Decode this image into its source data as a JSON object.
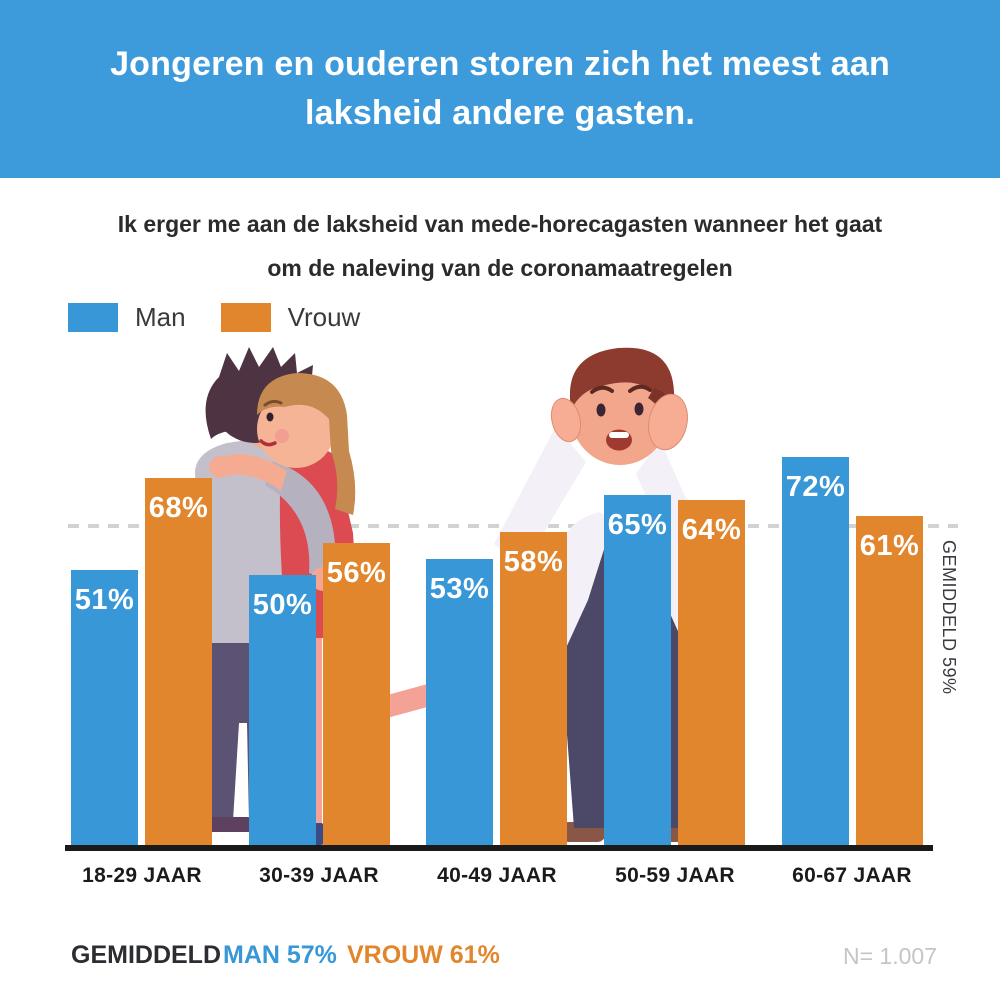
{
  "colors": {
    "header_bg": "#3e9bdb",
    "man_blue": "#3897d6",
    "vrouw_orange": "#e1862c",
    "text_dark": "#2b2b2e",
    "axis_black": "#1a1a1a",
    "dash_gray": "#d2d2d2",
    "muted_gray": "#c5c5c9",
    "bar_value_text": "#ffffff"
  },
  "header": {
    "title": "Jongeren en ouderen storen zich het meest aan laksheid andere gasten."
  },
  "subtitle": {
    "line1": "Ik erger me aan de laksheid van mede-horecagasten wanneer het gaat",
    "line2": "om de naleving van de coronamaatregelen"
  },
  "chart_data": {
    "type": "bar",
    "categories": [
      "18-29 JAAR",
      "30-39 JAAR",
      "40-49 JAAR",
      "50-59 JAAR",
      "60-67 JAAR"
    ],
    "series": [
      {
        "name": "Man",
        "color": "#3897d6",
        "values": [
          51,
          50,
          53,
          65,
          72
        ]
      },
      {
        "name": "Vrouw",
        "color": "#e1862c",
        "values": [
          68,
          56,
          58,
          64,
          61
        ]
      }
    ],
    "value_suffix": "%",
    "average_line": {
      "value": 59,
      "label": "GEMIDDELD 59%"
    },
    "ylim": [
      0,
      100
    ],
    "grid": false,
    "legend_position": "top-left",
    "title": "Ik erger me aan de laksheid van mede-horecagasten wanneer het gaat om de naleving van de coronamaatregelen"
  },
  "footer": {
    "average_label": "GEMIDDELD",
    "man_label": "MAN 57%",
    "vrouw_label": "VROUW 61%",
    "sample_label": "N= 1.007"
  }
}
